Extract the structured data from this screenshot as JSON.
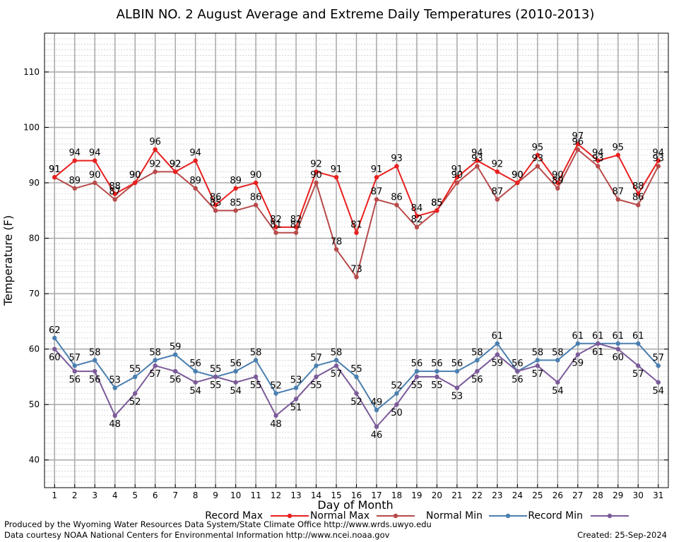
{
  "chart_data": {
    "type": "line",
    "title": "ALBIN NO. 2 August Average and Extreme Daily Temperatures (2010-2013)",
    "xlabel": "Day of Month",
    "ylabel": "Temperature (F)",
    "x": [
      1,
      2,
      3,
      4,
      5,
      6,
      7,
      8,
      9,
      10,
      11,
      12,
      13,
      14,
      15,
      16,
      17,
      18,
      19,
      20,
      21,
      22,
      23,
      24,
      25,
      26,
      27,
      28,
      29,
      30,
      31
    ],
    "xlim": [
      0.5,
      31.5
    ],
    "ylim": [
      35,
      117
    ],
    "yticks": [
      40,
      50,
      60,
      70,
      80,
      90,
      100,
      110
    ],
    "grid": true,
    "legend_position": "bottom",
    "series": [
      {
        "name": "Record Max",
        "color": "#e8201e",
        "values": [
          91,
          94,
          94,
          88,
          90,
          96,
          92,
          94,
          86,
          89,
          90,
          82,
          82,
          92,
          91,
          81,
          91,
          93,
          84,
          85,
          91,
          94,
          92,
          90,
          95,
          90,
          97,
          94,
          95,
          88,
          94
        ]
      },
      {
        "name": "Normal Max",
        "color": "#b84a4a",
        "values": [
          91,
          89,
          90,
          87,
          90,
          92,
          92,
          89,
          85,
          85,
          86,
          81,
          81,
          90,
          78,
          73,
          87,
          86,
          82,
          85,
          90,
          93,
          87,
          90,
          93,
          89,
          96,
          93,
          87,
          86,
          93
        ]
      },
      {
        "name": "Normal Min",
        "color": "#4a7fb0",
        "values": [
          62,
          57,
          58,
          53,
          55,
          58,
          59,
          56,
          55,
          56,
          58,
          52,
          53,
          57,
          58,
          55,
          49,
          52,
          56,
          56,
          56,
          58,
          61,
          56,
          58,
          58,
          61,
          61,
          61,
          61,
          57
        ]
      },
      {
        "name": "Record Min",
        "color": "#7b5a99",
        "values": [
          60,
          56,
          56,
          48,
          52,
          57,
          56,
          54,
          55,
          54,
          55,
          48,
          51,
          55,
          57,
          52,
          46,
          50,
          55,
          55,
          53,
          56,
          59,
          56,
          57,
          54,
          59,
          61,
          60,
          57,
          54
        ]
      }
    ]
  },
  "footer": {
    "produced_by": "Produced by the Wyoming Water Resources Data System/State Climate Office http://www.wrds.uwyo.edu",
    "data_courtesy": "Data courtesy NOAA National Centers for Environmental Information http://www.ncei.noaa.gov",
    "created": "Created:  25-Sep-2024"
  }
}
